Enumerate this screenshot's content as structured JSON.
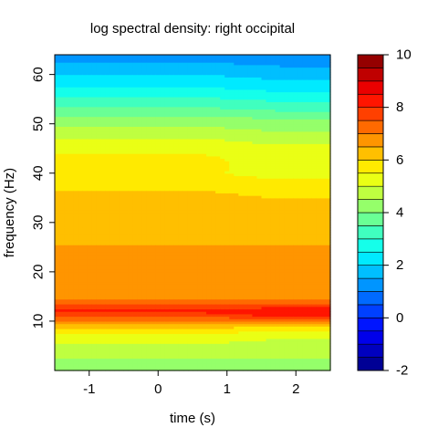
{
  "chart_data": {
    "type": "heatmap",
    "title": "log spectral density: right occipital",
    "xlabel": "time (s)",
    "ylabel": "frequency (Hz)",
    "xlim": [
      -1.5,
      2.5
    ],
    "ylim": [
      0,
      64
    ],
    "x_ticks": [
      -1,
      0,
      1,
      2
    ],
    "y_ticks": [
      10,
      20,
      30,
      40,
      50,
      60
    ],
    "colorbar": {
      "min": -2,
      "max": 10,
      "step": 0.5,
      "ticks": [
        -2,
        0,
        2,
        4,
        6,
        8,
        10
      ],
      "colormap": "jet"
    },
    "frequency_profile": {
      "frequency": [
        0,
        2,
        4,
        6,
        8,
        9,
        10,
        11,
        12,
        13,
        14,
        15,
        17,
        20,
        24,
        25.5,
        26,
        30,
        35,
        38,
        40,
        42,
        44,
        47,
        49,
        51,
        53,
        55,
        57,
        59,
        61,
        63,
        64
      ],
      "value_start": [
        4.25,
        4.4,
        4.7,
        5.1,
        5.7,
        6.2,
        6.8,
        7.6,
        8.1,
        7.7,
        7.1,
        6.8,
        6.65,
        6.6,
        6.6,
        6.5,
        6.1,
        6.05,
        6.1,
        5.9,
        5.6,
        5.6,
        5.5,
        5.0,
        4.6,
        4.2,
        3.6,
        3.1,
        2.6,
        2.2,
        1.8,
        1.4,
        1.3
      ],
      "value_end": [
        4.25,
        4.4,
        4.7,
        4.9,
        5.4,
        6.0,
        6.9,
        8.0,
        8.6,
        7.9,
        7.1,
        6.8,
        6.65,
        6.6,
        6.6,
        6.5,
        6.1,
        6.0,
        6.0,
        5.7,
        5.2,
        5.3,
        5.3,
        4.8,
        4.4,
        4.0,
        3.4,
        2.9,
        2.4,
        2.0,
        1.6,
        1.3,
        1.2
      ]
    }
  }
}
